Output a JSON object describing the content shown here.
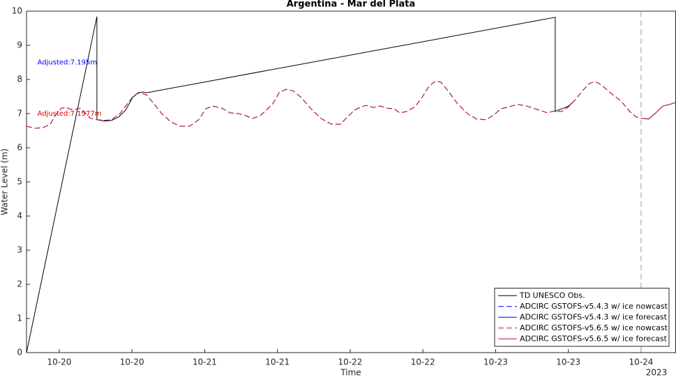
{
  "chart_data": {
    "type": "line",
    "title": "Argentina - Mar del Plata",
    "xlabel": "Time",
    "xlabel_year": "2023",
    "ylabel": "Water Level (m)",
    "xlim": [
      19.775,
      24.24
    ],
    "ylim": [
      0,
      10
    ],
    "xticks": [
      {
        "value": 20,
        "label": "10-20"
      },
      {
        "value": 20.5,
        "label": "10-20"
      },
      {
        "value": 21,
        "label": "10-21"
      },
      {
        "value": 21.5,
        "label": "10-21"
      },
      {
        "value": 22,
        "label": "10-22"
      },
      {
        "value": 22.5,
        "label": "10-22"
      },
      {
        "value": 23,
        "label": "10-23"
      },
      {
        "value": 23.5,
        "label": "10-23"
      },
      {
        "value": 24,
        "label": "10-24"
      }
    ],
    "yticks": [
      0,
      1,
      2,
      3,
      4,
      5,
      6,
      7,
      8,
      9,
      10
    ],
    "grid": false,
    "legend_location": "southeast",
    "forecast_start": 24,
    "annotations": [
      {
        "text": "Adjusted:7.195m",
        "color": "#0000ff",
        "x": 19.85,
        "y": 8.5
      },
      {
        "text": "Adjusted:7.1977m",
        "color": "#e00000",
        "x": 19.85,
        "y": 7.0
      }
    ],
    "series": [
      {
        "name": "TD UNESCO Obs.",
        "color": "#000000",
        "linestyle": "solid",
        "x": [
          19.775,
          20.259,
          20.259,
          20.312,
          20.36,
          20.408,
          20.456,
          20.504,
          20.542,
          20.576,
          20.6,
          23.41,
          23.41,
          23.429,
          23.468,
          23.501,
          23.535
        ],
        "values": [
          0,
          9.84,
          6.82,
          6.78,
          6.8,
          6.9,
          7.1,
          7.47,
          7.61,
          7.63,
          7.61,
          9.82,
          7.06,
          7.1,
          7.16,
          7.22,
          7.35
        ]
      },
      {
        "name": "ADCIRC GSTOFS-v5.4.3 w/ ice nowcast",
        "color": "#0000ff",
        "linestyle": "dashed",
        "x": [
          19.775,
          19.832,
          19.89,
          19.938,
          19.976,
          20.014,
          20.048,
          20.082,
          20.11,
          20.144,
          20.177,
          20.216,
          20.259,
          20.312,
          20.36,
          20.417,
          20.465,
          20.513,
          20.552,
          20.6,
          20.647,
          20.705,
          20.767,
          20.83,
          20.897,
          20.959,
          21.007,
          21.055,
          21.118,
          21.175,
          21.233,
          21.271,
          21.329,
          21.376,
          21.424,
          21.472,
          21.511,
          21.559,
          21.607,
          21.664,
          21.727,
          21.799,
          21.871,
          21.933,
          21.981,
          22.029,
          22.077,
          22.11,
          22.158,
          22.206,
          22.254,
          22.302,
          22.341,
          22.388,
          22.446,
          22.494,
          22.542,
          22.59,
          22.624,
          22.672,
          22.734,
          22.806,
          22.868,
          22.935,
          22.988,
          23.036,
          23.094,
          23.151,
          23.213,
          23.285,
          23.357,
          23.405,
          23.453,
          23.501,
          23.549,
          23.597,
          23.645,
          23.683,
          23.727,
          23.789,
          23.861,
          23.923,
          23.966,
          24.005
        ],
        "values": [
          6.63,
          6.57,
          6.59,
          6.69,
          6.96,
          7.16,
          7.18,
          7.12,
          7.12,
          7.16,
          7.02,
          6.86,
          6.82,
          6.8,
          6.82,
          7.0,
          7.27,
          7.53,
          7.61,
          7.55,
          7.31,
          7.0,
          6.76,
          6.63,
          6.63,
          6.82,
          7.14,
          7.22,
          7.16,
          7.02,
          7.0,
          6.96,
          6.86,
          6.92,
          7.1,
          7.31,
          7.61,
          7.71,
          7.67,
          7.47,
          7.16,
          6.86,
          6.69,
          6.69,
          6.9,
          7.1,
          7.2,
          7.24,
          7.18,
          7.22,
          7.16,
          7.14,
          7.02,
          7.06,
          7.2,
          7.47,
          7.8,
          7.96,
          7.92,
          7.67,
          7.31,
          7.0,
          6.84,
          6.82,
          6.96,
          7.14,
          7.2,
          7.27,
          7.22,
          7.12,
          7.02,
          7.08,
          7.06,
          7.2,
          7.41,
          7.67,
          7.88,
          7.94,
          7.84,
          7.61,
          7.37,
          7.06,
          6.9,
          6.86
        ]
      },
      {
        "name": "ADCIRC GSTOFS-v5.4.3 w/ ice forecast",
        "color": "#0000ff",
        "linestyle": "solid",
        "x": [
          24.005,
          24.053,
          24.101,
          24.149,
          24.197,
          24.24
        ],
        "values": [
          6.86,
          6.84,
          7.02,
          7.22,
          7.27,
          7.33
        ]
      },
      {
        "name": "ADCIRC GSTOFS-v5.6.5 w/ ice nowcast",
        "color": "#c8102e",
        "linestyle": "dashed",
        "x": [
          19.775,
          19.832,
          19.89,
          19.938,
          19.976,
          20.014,
          20.048,
          20.082,
          20.11,
          20.144,
          20.177,
          20.216,
          20.259,
          20.312,
          20.36,
          20.417,
          20.465,
          20.513,
          20.552,
          20.6,
          20.647,
          20.705,
          20.767,
          20.83,
          20.897,
          20.959,
          21.007,
          21.055,
          21.118,
          21.175,
          21.233,
          21.271,
          21.329,
          21.376,
          21.424,
          21.472,
          21.511,
          21.559,
          21.607,
          21.664,
          21.727,
          21.799,
          21.871,
          21.933,
          21.981,
          22.029,
          22.077,
          22.11,
          22.158,
          22.206,
          22.254,
          22.302,
          22.341,
          22.388,
          22.446,
          22.494,
          22.542,
          22.59,
          22.624,
          22.672,
          22.734,
          22.806,
          22.868,
          22.935,
          22.988,
          23.036,
          23.094,
          23.151,
          23.213,
          23.285,
          23.357,
          23.405,
          23.453,
          23.501,
          23.549,
          23.597,
          23.645,
          23.683,
          23.727,
          23.789,
          23.861,
          23.923,
          23.966,
          24.005
        ],
        "values": [
          6.63,
          6.57,
          6.59,
          6.69,
          6.96,
          7.16,
          7.18,
          7.12,
          7.12,
          7.16,
          7.02,
          6.86,
          6.82,
          6.8,
          6.82,
          7.0,
          7.27,
          7.53,
          7.61,
          7.55,
          7.31,
          7.0,
          6.76,
          6.63,
          6.63,
          6.82,
          7.14,
          7.22,
          7.16,
          7.02,
          7.0,
          6.96,
          6.86,
          6.92,
          7.1,
          7.31,
          7.61,
          7.71,
          7.67,
          7.47,
          7.16,
          6.86,
          6.69,
          6.69,
          6.9,
          7.1,
          7.2,
          7.24,
          7.18,
          7.22,
          7.16,
          7.14,
          7.02,
          7.06,
          7.2,
          7.47,
          7.8,
          7.96,
          7.92,
          7.67,
          7.31,
          7.0,
          6.84,
          6.82,
          6.96,
          7.14,
          7.2,
          7.27,
          7.22,
          7.12,
          7.02,
          7.08,
          7.06,
          7.2,
          7.41,
          7.67,
          7.88,
          7.94,
          7.84,
          7.61,
          7.37,
          7.06,
          6.9,
          6.86
        ]
      },
      {
        "name": "ADCIRC GSTOFS-v5.6.5 w/ ice forecast",
        "color": "#c8102e",
        "linestyle": "solid",
        "x": [
          24.005,
          24.053,
          24.101,
          24.149,
          24.197,
          24.24
        ],
        "values": [
          6.86,
          6.84,
          7.02,
          7.22,
          7.27,
          7.33
        ]
      }
    ]
  }
}
